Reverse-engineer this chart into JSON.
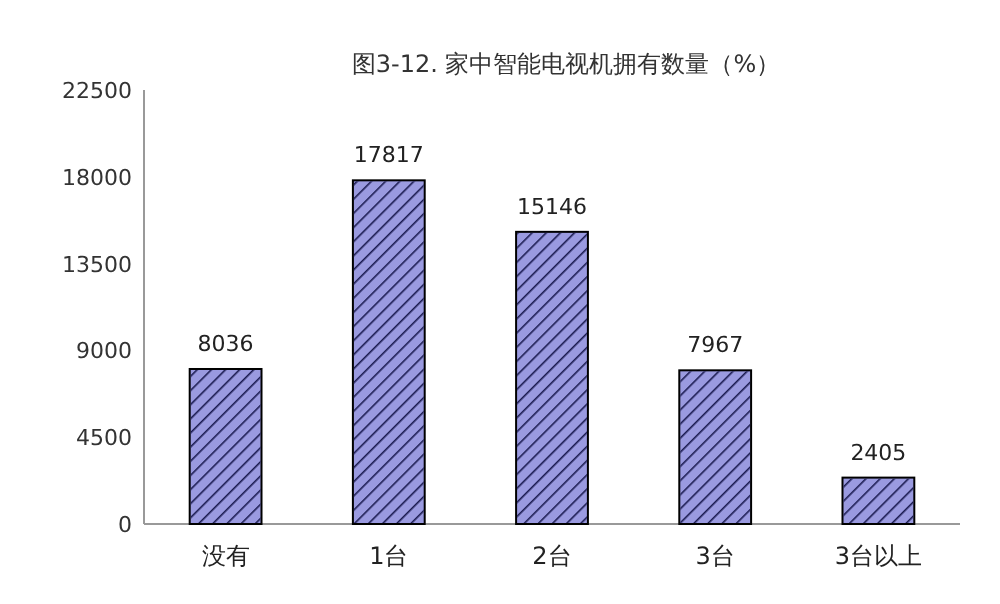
{
  "chart_data": {
    "type": "bar",
    "title": "图3-12. 家中智能电视机拥有数量（%）",
    "categories": [
      "没有",
      "1台",
      "2台",
      "3台",
      "3台以上"
    ],
    "values": [
      8036,
      17817,
      15146,
      7967,
      2405
    ],
    "color": "#9a9ae0",
    "ylim": [
      0,
      22500
    ],
    "yticks": [
      0,
      4500,
      9000,
      13500,
      18000,
      22500
    ],
    "data_labels": true
  }
}
